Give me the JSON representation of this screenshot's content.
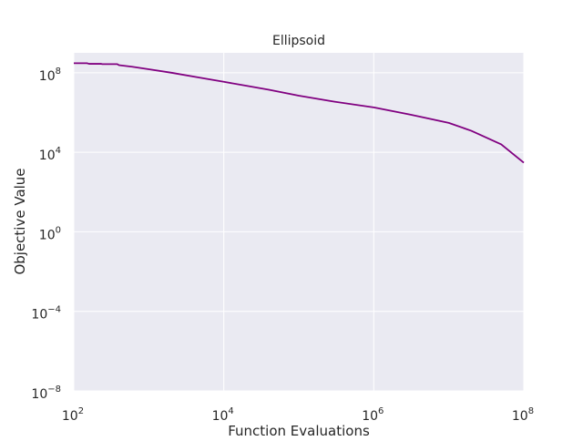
{
  "chart_data": {
    "type": "line",
    "title": "Ellipsoid",
    "xlabel": "Function Evaluations",
    "ylabel": "Objective Value",
    "x_scale": "log",
    "y_scale": "log",
    "xlim": [
      100,
      100000000
    ],
    "ylim": [
      1e-08,
      1000000000
    ],
    "x_ticks": [
      {
        "value": 100,
        "base": "10",
        "exp": "2"
      },
      {
        "value": 10000,
        "base": "10",
        "exp": "4"
      },
      {
        "value": 1000000,
        "base": "10",
        "exp": "6"
      },
      {
        "value": 100000000,
        "base": "10",
        "exp": "8"
      }
    ],
    "y_ticks": [
      {
        "value": 1e-08,
        "base": "10",
        "exp": "−8"
      },
      {
        "value": 0.0001,
        "base": "10",
        "exp": "−4"
      },
      {
        "value": 1,
        "base": "10",
        "exp": "0"
      },
      {
        "value": 10000,
        "base": "10",
        "exp": "4"
      },
      {
        "value": 100000000,
        "base": "10",
        "exp": "8"
      }
    ],
    "grid": true,
    "background_color": "#eaeaf2",
    "grid_color": "#ffffff",
    "series": [
      {
        "color": "#800080",
        "points": [
          [
            100,
            300000000
          ],
          [
            150,
            300000000
          ],
          [
            160,
            280000000
          ],
          [
            230,
            280000000
          ],
          [
            240,
            270000000
          ],
          [
            380,
            270000000
          ],
          [
            400,
            240000000
          ],
          [
            600,
            200000000
          ],
          [
            1000,
            150000000
          ],
          [
            2000,
            100000000
          ],
          [
            5000,
            55000000
          ],
          [
            10000,
            35000000
          ],
          [
            20000,
            22000000
          ],
          [
            40000,
            14000000
          ],
          [
            100000,
            7000000
          ],
          [
            300000,
            3500000
          ],
          [
            1000000,
            1800000
          ],
          [
            3000000,
            800000
          ],
          [
            10000000,
            300000
          ],
          [
            20000000,
            120000
          ],
          [
            50000000,
            25000
          ],
          [
            100000000,
            3000
          ]
        ]
      }
    ]
  }
}
